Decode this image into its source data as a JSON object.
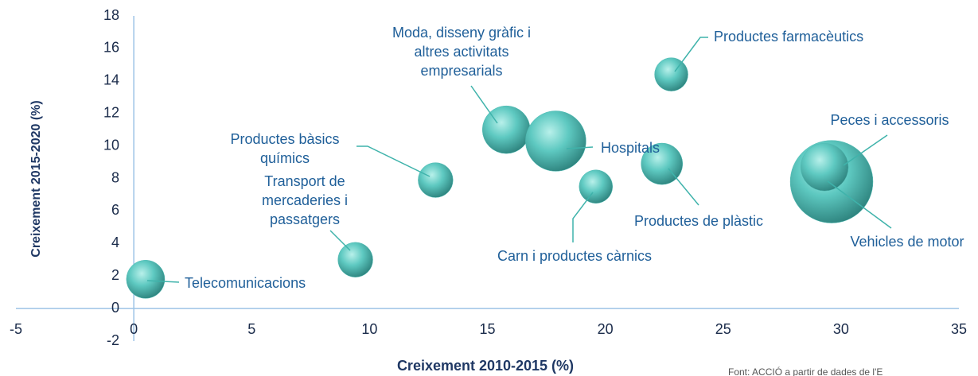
{
  "chart_data": {
    "type": "bubble",
    "xlabel": "Creixement 2010-2015 (%)",
    "ylabel": "Creixement 2015-2020 (%)",
    "source": "Font: ACCIÓ a partir de dades de l'E",
    "xlim": [
      -5,
      35
    ],
    "xticks": [
      -5,
      0,
      5,
      10,
      15,
      20,
      25,
      30,
      35
    ],
    "ylim": [
      -2,
      18
    ],
    "yticks": [
      -2,
      0,
      2,
      4,
      6,
      8,
      10,
      12,
      14,
      16,
      18
    ],
    "series": [
      {
        "color": "#4fbdb5",
        "labels": [
          [
            "Telecomunicacions"
          ],
          [
            "Transport de",
            "mercaderies i",
            "passatgers"
          ],
          [
            "Productes bàsics",
            "químics"
          ],
          [
            "Moda, disseny gràfic i",
            "altres activitats",
            "empresarials"
          ],
          [
            "Hospitals"
          ],
          [
            "Carn i productes càrnics"
          ],
          [
            "Productes farmacèutics"
          ],
          [
            "Productes de plàstic"
          ],
          [
            "Vehicles de motor"
          ],
          [
            "Peces i accessoris"
          ]
        ],
        "x": [
          0.5,
          9.4,
          12.8,
          15.8,
          17.9,
          19.6,
          22.8,
          22.4,
          29.6,
          29.3
        ],
        "y": [
          1.8,
          3.0,
          7.9,
          11.0,
          10.3,
          7.5,
          14.4,
          8.9,
          7.8,
          8.7
        ],
        "sizes": [
          58,
          48,
          48,
          90,
          144,
          44,
          44,
          68,
          270,
          90
        ]
      }
    ]
  }
}
